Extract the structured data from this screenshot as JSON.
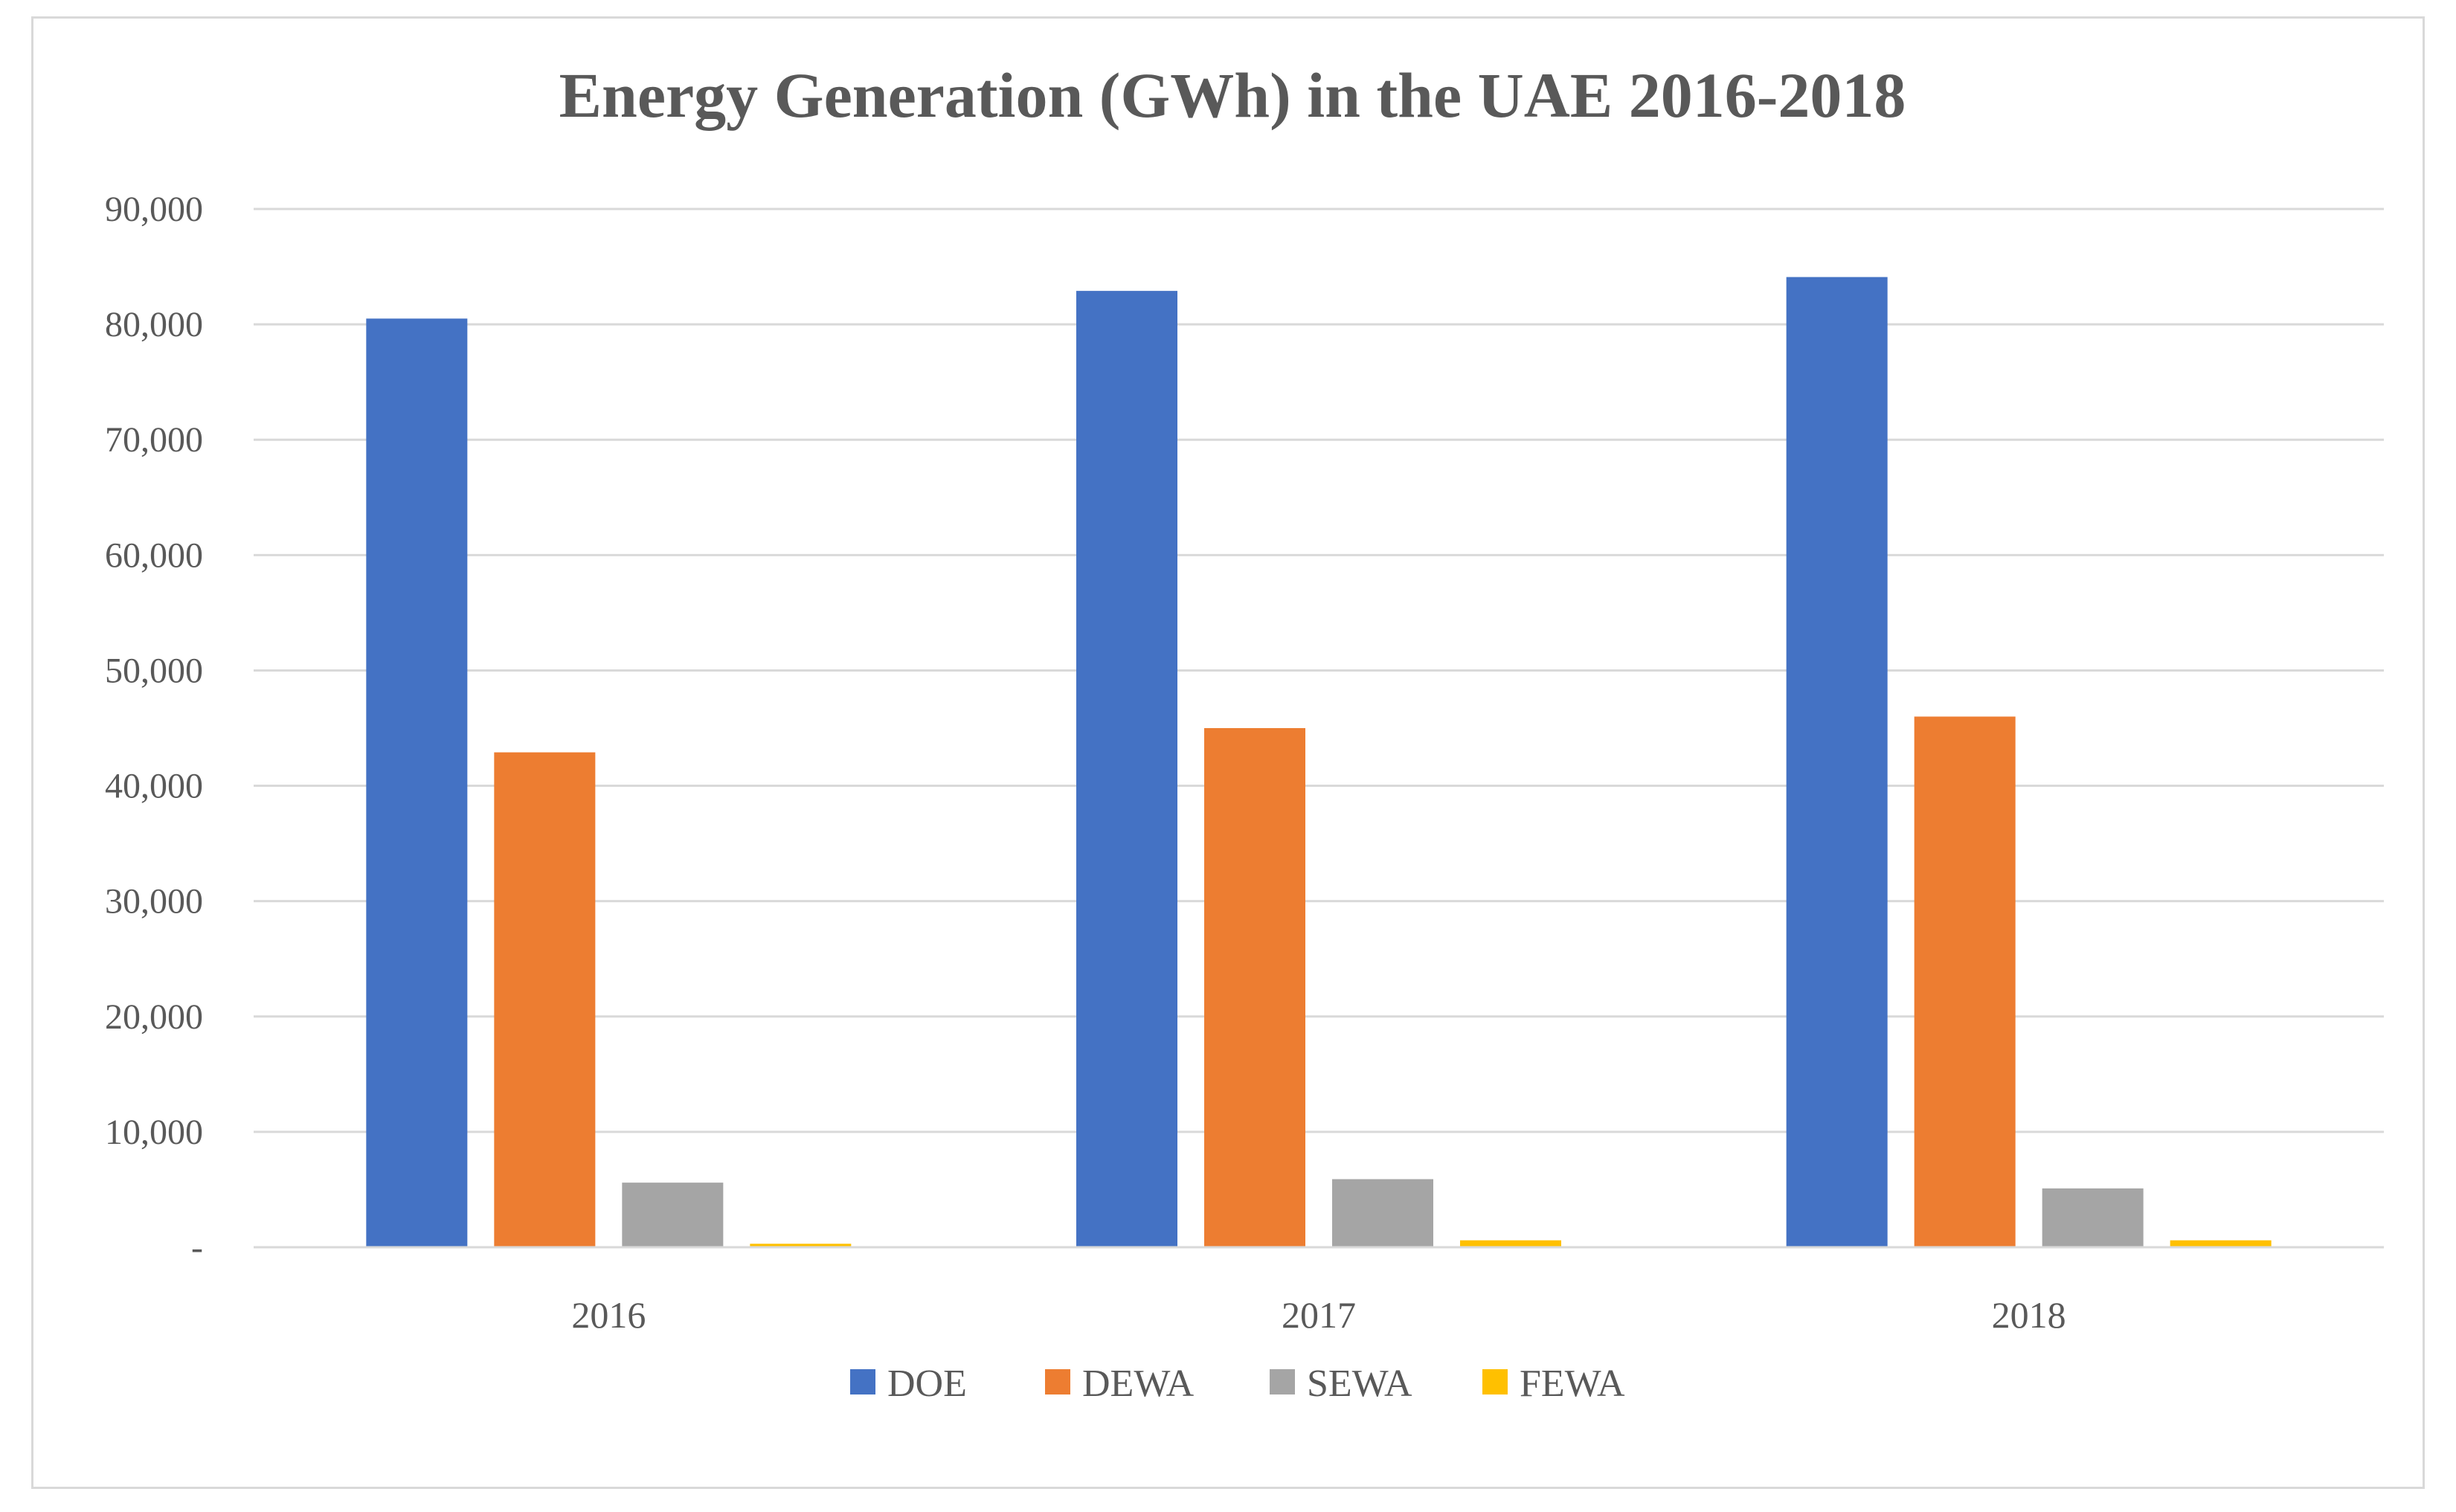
{
  "chart_data": {
    "type": "bar",
    "title": "Energy Generation (GWh) in the UAE 2016-2018",
    "xlabel": "",
    "ylabel": "",
    "categories": [
      "2016",
      "2017",
      "2018"
    ],
    "series": [
      {
        "name": "DOE",
        "color": "#4472C4",
        "values": [
          80500,
          82900,
          84100
        ]
      },
      {
        "name": "DEWA",
        "color": "#ED7D31",
        "values": [
          42900,
          45000,
          46000
        ]
      },
      {
        "name": "SEWA",
        "color": "#A5A5A5",
        "values": [
          5600,
          5900,
          5100
        ]
      },
      {
        "name": "FEWA",
        "color": "#FFC000",
        "values": [
          300,
          600,
          600
        ]
      }
    ],
    "ylim": [
      0,
      90000
    ],
    "yticks": [
      0,
      10000,
      20000,
      30000,
      40000,
      50000,
      60000,
      70000,
      80000,
      90000
    ],
    "ytick_labels": [
      "-",
      "10,000",
      "20,000",
      "30,000",
      "40,000",
      "50,000",
      "60,000",
      "70,000",
      "80,000",
      "90,000"
    ],
    "grid": true,
    "legend": "bottom"
  }
}
